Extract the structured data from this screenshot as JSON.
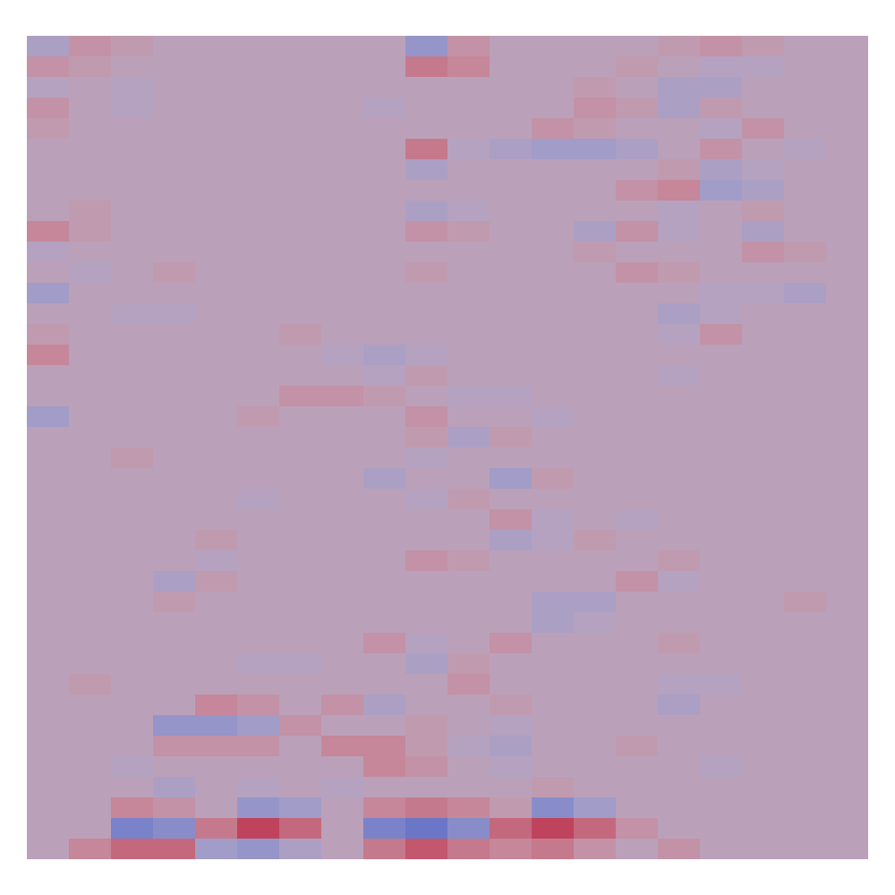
{
  "chart_data": {
    "type": "heatmap",
    "tick_labels": false,
    "zlim": [
      -1,
      1
    ],
    "z": [
      [
        -0.2,
        0.2,
        0.1,
        0,
        0,
        0,
        0,
        0,
        0,
        -0.4,
        0.2,
        0,
        0,
        0,
        0,
        0.1,
        0.2,
        0.1,
        0,
        0
      ],
      [
        0.2,
        0.1,
        0,
        0,
        0,
        0,
        0,
        0,
        0,
        0.4,
        0.3,
        0,
        0,
        0,
        0.1,
        0,
        -0.1,
        -0.1,
        0,
        0
      ],
      [
        -0.1,
        0,
        -0.1,
        0,
        0,
        0,
        0,
        0,
        0,
        0,
        0,
        0,
        0,
        0.1,
        0,
        -0.2,
        -0.2,
        0,
        0,
        0
      ],
      [
        0.2,
        0,
        -0.1,
        0,
        0,
        0,
        0,
        0,
        -0.1,
        0,
        0,
        0,
        0,
        0.2,
        0.1,
        -0.2,
        0.1,
        0,
        0,
        0
      ],
      [
        0.1,
        0,
        0,
        0,
        0,
        0,
        0,
        0,
        0,
        0,
        0,
        0,
        0.2,
        0.1,
        0,
        0,
        -0.1,
        0.2,
        0,
        0
      ],
      [
        0,
        0,
        0,
        0,
        0,
        0,
        0,
        0,
        0,
        0.4,
        -0.1,
        -0.2,
        -0.3,
        -0.3,
        -0.2,
        0,
        0.2,
        0,
        -0.1,
        0
      ],
      [
        0,
        0,
        0,
        0,
        0,
        0,
        0,
        0,
        0,
        -0.2,
        0,
        0,
        0,
        0,
        0,
        0.1,
        -0.2,
        -0.1,
        0,
        0
      ],
      [
        0,
        0,
        0,
        0,
        0,
        0,
        0,
        0,
        0,
        0,
        0,
        0,
        0,
        0,
        0.2,
        0.3,
        -0.3,
        -0.2,
        0,
        0
      ],
      [
        0,
        0.1,
        0,
        0,
        0,
        0,
        0,
        0,
        0,
        -0.2,
        -0.1,
        0,
        0,
        0,
        0,
        -0.1,
        0,
        0.1,
        0,
        0
      ],
      [
        0.3,
        0.1,
        0,
        0,
        0,
        0,
        0,
        0,
        0,
        0.2,
        0.1,
        0,
        0,
        -0.2,
        0.2,
        -0.1,
        0,
        -0.2,
        0,
        0
      ],
      [
        -0.1,
        0,
        0,
        0,
        0,
        0,
        0,
        0,
        0,
        0,
        0,
        0,
        0,
        0.1,
        0,
        0,
        0,
        0.2,
        0.1,
        0
      ],
      [
        0,
        -0.1,
        0,
        0.1,
        0,
        0,
        0,
        0,
        0,
        0.1,
        0,
        0,
        0,
        0,
        0.2,
        0.1,
        0,
        0,
        0,
        0
      ],
      [
        -0.3,
        0,
        0,
        0,
        0,
        0,
        0,
        0,
        0,
        0,
        0,
        0,
        0,
        0,
        0,
        0,
        -0.1,
        -0.1,
        -0.2,
        0
      ],
      [
        0,
        0,
        -0.1,
        -0.1,
        0,
        0,
        0,
        0,
        0,
        0,
        0,
        0,
        0,
        0,
        0,
        -0.2,
        -0.1,
        0,
        0,
        0
      ],
      [
        0.1,
        0,
        0,
        0,
        0,
        0,
        0.1,
        0,
        0,
        0,
        0,
        0,
        0,
        0,
        0,
        -0.1,
        0.2,
        0,
        0,
        0
      ],
      [
        0.3,
        0,
        0,
        0,
        0,
        0,
        0,
        -0.1,
        -0.2,
        -0.1,
        0,
        0,
        0,
        0,
        0,
        0,
        0,
        0,
        0,
        0
      ],
      [
        0,
        0,
        0,
        0,
        0,
        0,
        0,
        0,
        -0.1,
        0.1,
        0,
        0,
        0,
        0,
        0,
        -0.1,
        0,
        0,
        0,
        0
      ],
      [
        0,
        0,
        0,
        0,
        0,
        0,
        0.2,
        0.2,
        0.1,
        0,
        -0.1,
        -0.1,
        0,
        0,
        0,
        0,
        0,
        0,
        0,
        0
      ],
      [
        -0.3,
        0,
        0,
        0,
        0,
        0.1,
        0,
        0,
        0,
        0.2,
        0,
        0,
        -0.1,
        0,
        0,
        0,
        0,
        0,
        0,
        0
      ],
      [
        0,
        0,
        0,
        0,
        0,
        0,
        0,
        0,
        0,
        0.1,
        -0.2,
        0.1,
        0,
        0,
        0,
        0,
        0,
        0,
        0,
        0
      ],
      [
        0,
        0,
        0.1,
        0,
        0,
        0,
        0,
        0,
        0,
        -0.1,
        0,
        0,
        0,
        0,
        0,
        0,
        0,
        0,
        0,
        0
      ],
      [
        0,
        0,
        0,
        0,
        0,
        0,
        0,
        0,
        -0.2,
        0,
        0,
        -0.3,
        0.1,
        0,
        0,
        0,
        0,
        0,
        0,
        0
      ],
      [
        0,
        0,
        0,
        0,
        0,
        -0.1,
        0,
        0,
        0,
        -0.1,
        0.1,
        0,
        0,
        0,
        0,
        0,
        0,
        0,
        0,
        0
      ],
      [
        0,
        0,
        0,
        0,
        0,
        0,
        0,
        0,
        0,
        0,
        0,
        0.2,
        -0.1,
        0,
        -0.1,
        0,
        0,
        0,
        0,
        0
      ],
      [
        0,
        0,
        0,
        0,
        0.1,
        0,
        0,
        0,
        0,
        0,
        0,
        -0.2,
        -0.1,
        0.1,
        0,
        0,
        0,
        0,
        0,
        0
      ],
      [
        0,
        0,
        0,
        0,
        -0.1,
        0,
        0,
        0,
        0,
        0.2,
        0.1,
        0,
        0,
        0,
        0,
        0.1,
        0,
        0,
        0,
        0
      ],
      [
        0,
        0,
        0,
        -0.2,
        0.1,
        0,
        0,
        0,
        0,
        0,
        0,
        0,
        0,
        0,
        0.2,
        -0.1,
        0,
        0,
        0,
        0
      ],
      [
        0,
        0,
        0,
        0.1,
        0,
        0,
        0,
        0,
        0,
        0,
        0,
        0,
        -0.2,
        -0.2,
        0,
        0,
        0,
        0,
        0.1,
        0
      ],
      [
        0,
        0,
        0,
        0,
        0,
        0,
        0,
        0,
        0,
        0,
        0,
        0,
        -0.2,
        -0.1,
        0,
        0,
        0,
        0,
        0,
        0
      ],
      [
        0,
        0,
        0,
        0,
        0,
        0,
        0,
        0,
        0.2,
        -0.1,
        0,
        0.2,
        0,
        0,
        0,
        0.1,
        0,
        0,
        0,
        0
      ],
      [
        0,
        0,
        0,
        0,
        0,
        -0.1,
        -0.1,
        0,
        0,
        -0.2,
        0.1,
        0,
        0,
        0,
        0,
        0,
        0,
        0,
        0,
        0
      ],
      [
        0,
        0.1,
        0,
        0,
        0,
        0,
        0,
        0,
        0,
        0,
        0.2,
        0,
        0,
        0,
        0,
        -0.1,
        -0.1,
        0,
        0,
        0
      ],
      [
        0,
        0,
        0,
        0,
        0.3,
        0.2,
        0,
        0.2,
        -0.2,
        0,
        0,
        0.1,
        0,
        0,
        0,
        -0.2,
        0,
        0,
        0,
        0
      ],
      [
        0,
        0,
        0,
        -0.4,
        -0.4,
        -0.3,
        0.2,
        0,
        0,
        0.1,
        0,
        -0.1,
        0,
        0,
        0,
        0,
        0,
        0,
        0,
        0
      ],
      [
        0,
        0,
        0,
        0.2,
        0.2,
        0.2,
        0,
        0.3,
        0.3,
        0.1,
        -0.1,
        -0.2,
        0,
        0,
        0.1,
        0,
        0,
        0,
        0,
        0
      ],
      [
        0,
        0,
        -0.1,
        0,
        0,
        0,
        0,
        0,
        0.3,
        0.2,
        0,
        -0.1,
        0,
        0,
        0,
        0,
        -0.1,
        0,
        0,
        0
      ],
      [
        0,
        0,
        0,
        -0.2,
        0,
        -0.1,
        0,
        -0.1,
        0,
        0,
        0,
        0,
        0.1,
        0,
        0,
        0,
        0,
        0,
        0,
        0
      ],
      [
        0,
        0,
        0.3,
        0.2,
        0,
        -0.4,
        -0.3,
        0,
        0.3,
        0.4,
        0.3,
        0.1,
        -0.5,
        -0.3,
        0,
        0,
        0,
        0,
        0,
        0
      ],
      [
        0,
        0,
        -0.6,
        -0.5,
        0.4,
        0.7,
        0.5,
        0,
        -0.6,
        -0.7,
        -0.5,
        0.5,
        0.7,
        0.5,
        0.2,
        0,
        0,
        0,
        0,
        0
      ],
      [
        0,
        0.3,
        0.5,
        0.5,
        -0.3,
        -0.4,
        -0.2,
        0,
        0.4,
        0.6,
        0.4,
        0.3,
        0.4,
        0.2,
        0,
        0.2,
        0,
        0,
        0,
        0
      ]
    ]
  }
}
